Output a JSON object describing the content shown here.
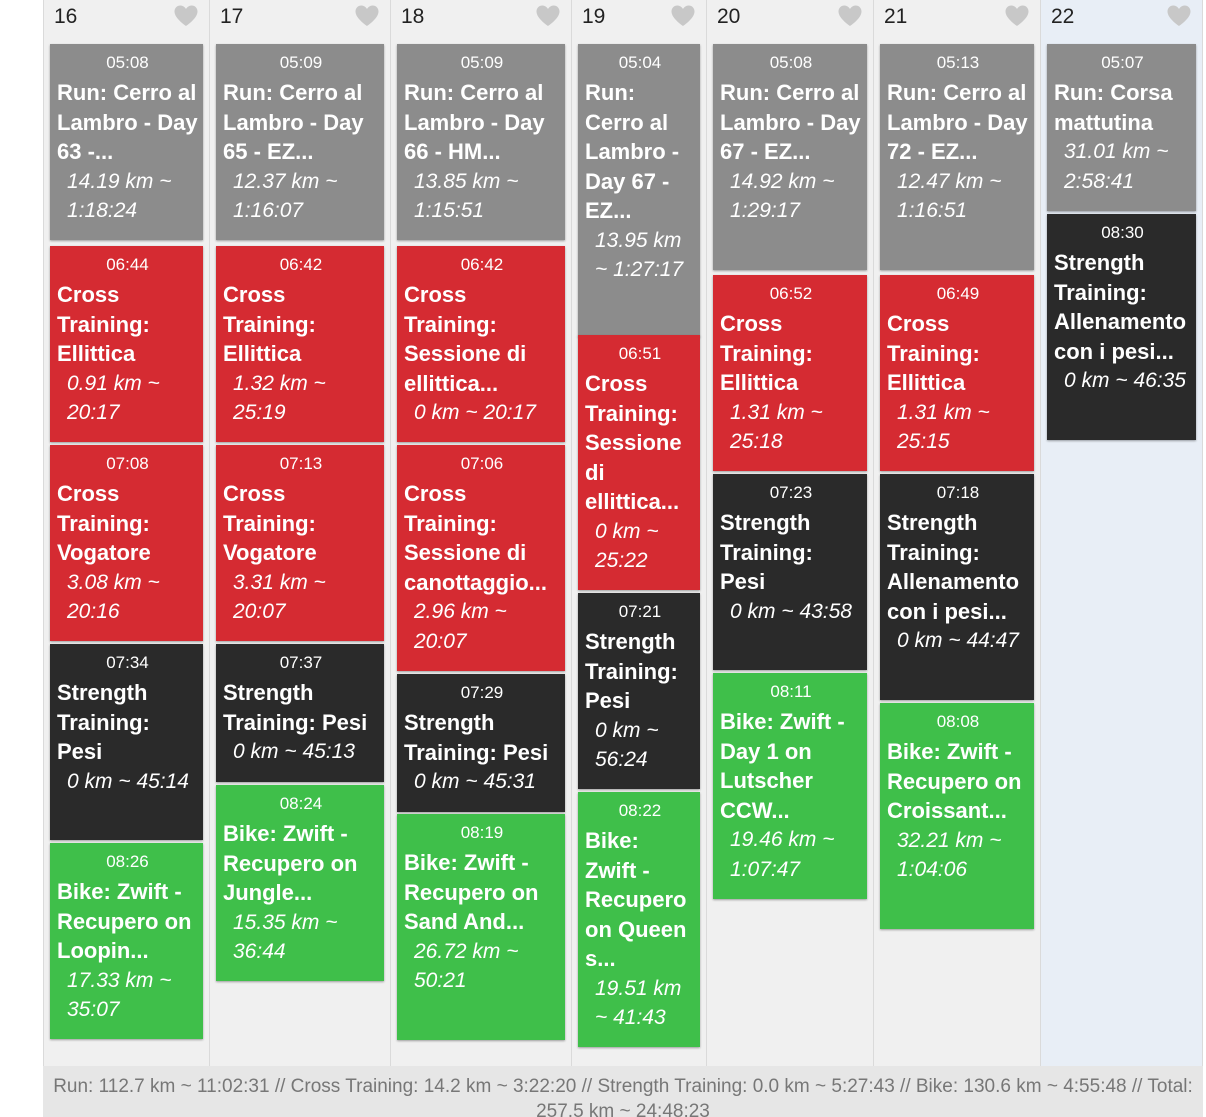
{
  "days": [
    {
      "number": "16",
      "activities": [
        {
          "time": "05:08",
          "title": "Run: Cerro al Lambro - Day 63 -...",
          "stats": "14.19 km ~ 1:18:24",
          "type": "run"
        },
        {
          "time": "06:44",
          "title": "Cross Training: Ellittica",
          "stats": "0.91 km ~ 20:17",
          "type": "cross"
        },
        {
          "time": "07:08",
          "title": "Cross Training: Vogatore",
          "stats": "3.08 km ~ 20:16",
          "type": "cross"
        },
        {
          "time": "07:34",
          "title": "Strength Training: Pesi",
          "stats": "0 km ~ 45:14",
          "type": "strength"
        },
        {
          "time": "08:26",
          "title": "Bike: Zwift - Recupero on Loopin...",
          "stats": "17.33 km ~ 35:07",
          "type": "bike"
        }
      ]
    },
    {
      "number": "17",
      "activities": [
        {
          "time": "05:09",
          "title": "Run: Cerro al Lambro - Day 65 - EZ...",
          "stats": "12.37 km ~ 1:16:07",
          "type": "run"
        },
        {
          "time": "06:42",
          "title": "Cross Training: Ellittica",
          "stats": "1.32 km ~ 25:19",
          "type": "cross"
        },
        {
          "time": "07:13",
          "title": "Cross Training: Vogatore",
          "stats": "3.31 km ~ 20:07",
          "type": "cross"
        },
        {
          "time": "07:37",
          "title": "Strength Training: Pesi",
          "stats": "0 km ~ 45:13",
          "type": "strength"
        },
        {
          "time": "08:24",
          "title": "Bike: Zwift - Recupero on Jungle...",
          "stats": "15.35 km ~ 36:44",
          "type": "bike"
        }
      ]
    },
    {
      "number": "18",
      "activities": [
        {
          "time": "05:09",
          "title": "Run: Cerro al Lambro - Day 66 - HM...",
          "stats": "13.85 km ~ 1:15:51",
          "type": "run"
        },
        {
          "time": "06:42",
          "title": "Cross Training: Sessione di ellittica...",
          "stats": "0 km ~ 20:17",
          "type": "cross"
        },
        {
          "time": "07:06",
          "title": "Cross Training: Sessione di canottaggio...",
          "stats": "2.96 km ~ 20:07",
          "type": "cross"
        },
        {
          "time": "07:29",
          "title": "Strength Training: Pesi",
          "stats": "0 km ~ 45:31",
          "type": "strength"
        },
        {
          "time": "08:19",
          "title": "Bike: Zwift - Recupero on Sand And...",
          "stats": "26.72 km ~ 50:21",
          "type": "bike"
        }
      ]
    },
    {
      "number": "19",
      "activities": [
        {
          "time": "05:04",
          "title": "Run: Cerro al Lambro - Day 67 - EZ...",
          "stats": "13.95 km ~ 1:27:17",
          "type": "run"
        },
        {
          "time": "06:51",
          "title": "Cross Training: Sessione di ellittica...",
          "stats": "0 km ~ 25:22",
          "type": "cross"
        },
        {
          "time": "07:21",
          "title": "Strength Training: Pesi",
          "stats": "0 km ~ 56:24",
          "type": "strength"
        },
        {
          "time": "08:22",
          "title": "Bike: Zwift - Recupero on Queen s...",
          "stats": "19.51 km ~ 41:43",
          "type": "bike"
        }
      ]
    },
    {
      "number": "20",
      "activities": [
        {
          "time": "05:08",
          "title": "Run: Cerro al Lambro - Day 67 - EZ...",
          "stats": "14.92 km ~ 1:29:17",
          "type": "run"
        },
        {
          "time": "06:52",
          "title": "Cross Training: Ellittica",
          "stats": "1.31 km ~ 25:18",
          "type": "cross"
        },
        {
          "time": "07:23",
          "title": "Strength Training: Pesi",
          "stats": "0 km ~ 43:58",
          "type": "strength"
        },
        {
          "time": "08:11",
          "title": "Bike: Zwift - Day 1 on Lutscher CCW...",
          "stats": "19.46 km ~ 1:07:47",
          "type": "bike"
        }
      ]
    },
    {
      "number": "21",
      "activities": [
        {
          "time": "05:13",
          "title": "Run: Cerro al Lambro - Day 72 - EZ...",
          "stats": "12.47 km ~ 1:16:51",
          "type": "run"
        },
        {
          "time": "06:49",
          "title": "Cross Training: Ellittica",
          "stats": "1.31 km ~ 25:15",
          "type": "cross"
        },
        {
          "time": "07:18",
          "title": "Strength Training: Allenamento con i pesi...",
          "stats": "0 km ~ 44:47",
          "type": "strength"
        },
        {
          "time": "08:08",
          "title": "Bike: Zwift - Recupero on Croissant...",
          "stats": "32.21 km ~ 1:04:06",
          "type": "bike"
        }
      ]
    },
    {
      "number": "22",
      "activities": [
        {
          "time": "05:07",
          "title": "Run: Corsa mattutina",
          "stats": "31.01 km ~ 2:58:41",
          "type": "run"
        },
        {
          "time": "08:30",
          "title": "Strength Training: Allenamento con i pesi...",
          "stats": "0 km ~ 46:35",
          "type": "strength"
        }
      ]
    }
  ],
  "summary": "Run: 112.7 km ~ 11:02:31 // Cross Training: 14.2 km ~ 3:22:20 // Strength Training: 0.0 km ~ 5:27:43 // Bike: 130.6 km ~ 4:55:48 // Total: 257.5 km ~ 24:48:23",
  "colors": {
    "run": "#8c8c8c",
    "cross": "#d52b32",
    "strength": "#2a2a2a",
    "bike": "#3fbf4a",
    "heart": "#c8c8c8"
  },
  "icons": {
    "favorite": "heart-icon"
  }
}
